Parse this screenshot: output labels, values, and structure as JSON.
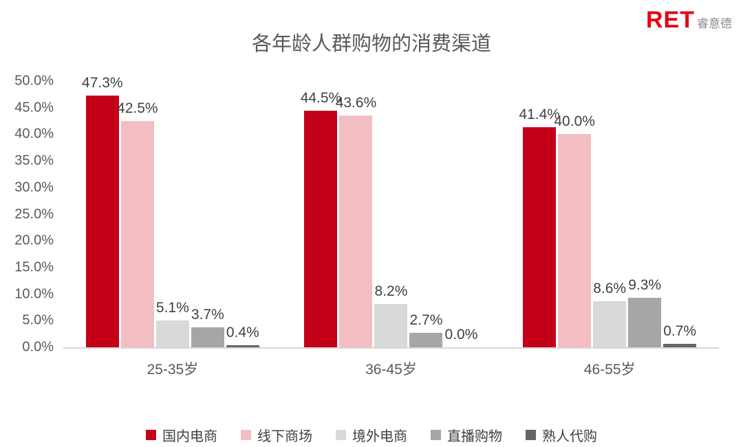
{
  "logo": {
    "ret": "RET",
    "name": "睿意德"
  },
  "chart_data": {
    "type": "bar",
    "title": "各年龄人群购物的消费渠道",
    "categories": [
      "25-35岁",
      "36-45岁",
      "46-55岁"
    ],
    "series": [
      {
        "name": "国内电商",
        "color": "#C40019",
        "values": [
          47.3,
          44.5,
          41.4
        ]
      },
      {
        "name": "线下商场",
        "color": "#F2BEC3",
        "values": [
          42.5,
          43.6,
          40.0
        ]
      },
      {
        "name": "境外电商",
        "color": "#D9D9D9",
        "values": [
          5.1,
          8.2,
          8.6
        ]
      },
      {
        "name": "直播购物",
        "color": "#A6A6A6",
        "values": [
          3.7,
          2.7,
          9.3
        ]
      },
      {
        "name": "熟人代购",
        "color": "#666666",
        "values": [
          0.4,
          0.0,
          0.7
        ]
      }
    ],
    "value_labels": [
      [
        "47.3%",
        "42.5%",
        "5.1%",
        "3.7%",
        "0.4%"
      ],
      [
        "44.5%",
        "43.6%",
        "8.2%",
        "2.7%",
        "0.0%"
      ],
      [
        "41.4%",
        "40.0%",
        "8.6%",
        "9.3%",
        "0.7%"
      ]
    ],
    "y_ticks": [
      "50.0%",
      "45.0%",
      "40.0%",
      "35.0%",
      "30.0%",
      "25.0%",
      "20.0%",
      "15.0%",
      "10.0%",
      "5.0%",
      "0.0%"
    ],
    "ylim": [
      0,
      50
    ],
    "xlabel": "",
    "ylabel": "",
    "grid": false,
    "legend_position": "bottom"
  }
}
